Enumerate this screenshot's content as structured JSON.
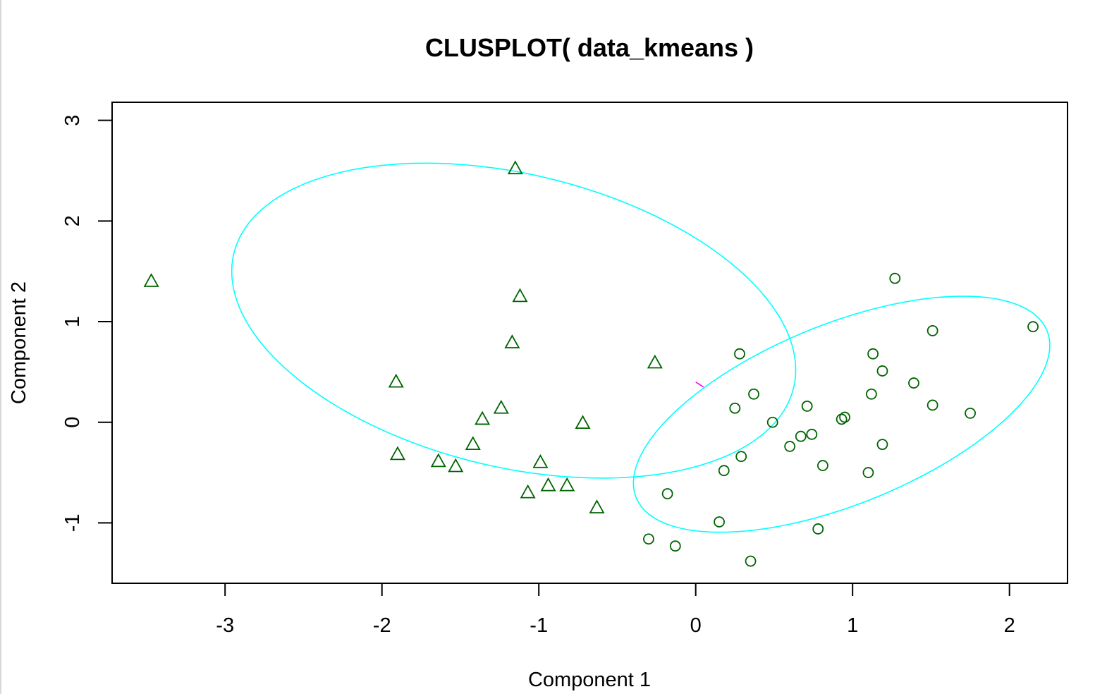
{
  "chart_data": {
    "type": "scatter",
    "title": "CLUSPLOT( data_kmeans )",
    "xlabel": "Component 1",
    "ylabel": "Component 2",
    "xlim": [
      -3.72,
      2.37
    ],
    "ylim": [
      -1.6,
      3.18
    ],
    "xticks": [
      -3,
      -2,
      -1,
      0,
      1,
      2
    ],
    "xtick_labels": [
      "-3",
      "-2",
      "-1",
      "0",
      "1",
      "2"
    ],
    "yticks": [
      -1,
      0,
      1,
      2,
      3
    ],
    "ytick_labels": [
      "-1",
      "0",
      "1",
      "2",
      "3"
    ],
    "grid": false,
    "legend": "none",
    "colors": {
      "points": "#006400",
      "ellipse": "#00ffff",
      "link": "#ff00ff",
      "axis": "#000000"
    },
    "series": [
      {
        "marker": "triangle",
        "points": [
          [
            -1.15,
            2.52
          ],
          [
            -3.47,
            1.4
          ],
          [
            -1.12,
            1.25
          ],
          [
            -1.17,
            0.79
          ],
          [
            -0.26,
            0.59
          ],
          [
            -1.91,
            0.4
          ],
          [
            -1.24,
            0.14
          ],
          [
            -1.36,
            0.03
          ],
          [
            -0.72,
            -0.01
          ],
          [
            -1.42,
            -0.22
          ],
          [
            -1.9,
            -0.32
          ],
          [
            -1.64,
            -0.39
          ],
          [
            -1.53,
            -0.44
          ],
          [
            -0.99,
            -0.4
          ],
          [
            -0.94,
            -0.63
          ],
          [
            -0.82,
            -0.63
          ],
          [
            -1.07,
            -0.7
          ],
          [
            -0.63,
            -0.85
          ]
        ]
      },
      {
        "marker": "circle",
        "points": [
          [
            1.27,
            1.43
          ],
          [
            2.15,
            0.95
          ],
          [
            1.51,
            0.91
          ],
          [
            0.28,
            0.68
          ],
          [
            1.13,
            0.68
          ],
          [
            1.19,
            0.51
          ],
          [
            1.39,
            0.39
          ],
          [
            0.37,
            0.28
          ],
          [
            1.12,
            0.28
          ],
          [
            0.25,
            0.14
          ],
          [
            0.71,
            0.16
          ],
          [
            1.51,
            0.17
          ],
          [
            1.75,
            0.09
          ],
          [
            0.93,
            0.03
          ],
          [
            0.95,
            0.05
          ],
          [
            0.49,
            0.0
          ],
          [
            0.6,
            -0.24
          ],
          [
            0.67,
            -0.14
          ],
          [
            0.74,
            -0.12
          ],
          [
            1.19,
            -0.22
          ],
          [
            0.29,
            -0.34
          ],
          [
            0.18,
            -0.48
          ],
          [
            0.81,
            -0.43
          ],
          [
            1.1,
            -0.5
          ],
          [
            -0.18,
            -0.71
          ],
          [
            0.15,
            -0.99
          ],
          [
            0.78,
            -1.06
          ],
          [
            -0.3,
            -1.16
          ],
          [
            -0.13,
            -1.23
          ],
          [
            0.35,
            -1.38
          ]
        ]
      }
    ],
    "ellipses": [
      {
        "cx": -1.16,
        "cy": 1.01,
        "a": 1.95,
        "b": 1.37,
        "angle_deg": -33
      },
      {
        "cx": 0.93,
        "cy": 0.08,
        "a": 1.58,
        "b": 0.8,
        "angle_deg": 39
      }
    ],
    "link": [
      [
        0.0,
        0.4
      ],
      [
        0.05,
        0.35
      ]
    ]
  }
}
